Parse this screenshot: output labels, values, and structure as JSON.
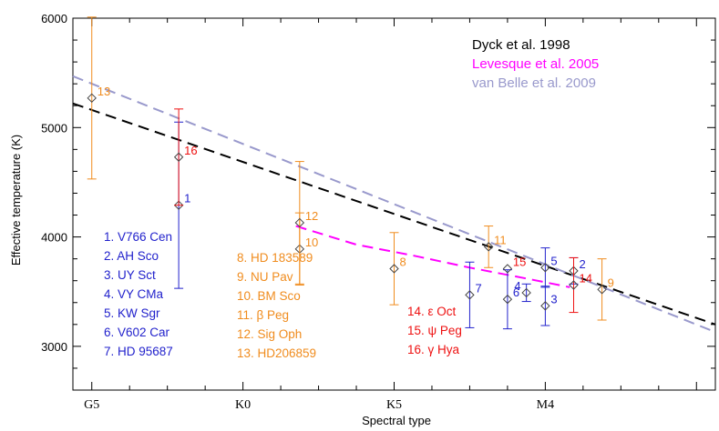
{
  "chart_data": {
    "type": "scatter",
    "xlabel": "Spectral type",
    "ylabel": "Effective temperature (K)",
    "xlim": [
      -1,
      33
    ],
    "ylim": [
      2600,
      6000
    ],
    "x_ticks": [
      {
        "pos": 0,
        "label": "G5"
      },
      {
        "pos": 8,
        "label": "K0"
      },
      {
        "pos": 16,
        "label": "K5"
      },
      {
        "pos": 24,
        "label": "M4"
      }
    ],
    "y_ticks": [
      3000,
      4000,
      5000,
      6000
    ],
    "series": [
      {
        "name": "Dyck et al. 1998",
        "color": "#000000",
        "points": [
          [
            -1,
            5220
          ],
          [
            33,
            3200
          ]
        ]
      },
      {
        "name": "Levesque et al. 2005",
        "color": "#ff00ff",
        "points": [
          [
            10.8,
            4100
          ],
          [
            14,
            3930
          ],
          [
            17,
            3830
          ],
          [
            20,
            3720
          ],
          [
            23,
            3620
          ],
          [
            25.3,
            3540
          ]
        ]
      },
      {
        "name": "van Belle et al. 2009",
        "color": "#9999cc",
        "points": [
          [
            -1,
            5470
          ],
          [
            33,
            3130
          ]
        ]
      }
    ],
    "stars": [
      {
        "id": "1",
        "name": "V766 Cen",
        "x": 4.6,
        "y": 4290,
        "err": 760,
        "color": "#2222cc",
        "label_pos": "right"
      },
      {
        "id": "2",
        "name": "AH Sco",
        "x": 25.5,
        "y": 3690,
        "err": 120,
        "color": "#2222cc",
        "label_pos": "right"
      },
      {
        "id": "3",
        "name": "UY Sct",
        "x": 24.0,
        "y": 3370,
        "err": 180,
        "color": "#2222cc",
        "label_pos": "right"
      },
      {
        "id": "4",
        "name": "VY CMa",
        "x": 23.0,
        "y": 3490,
        "err": 80,
        "color": "#2222cc",
        "label_pos": "left"
      },
      {
        "id": "5",
        "name": "KW Sgr",
        "x": 24.0,
        "y": 3720,
        "err": 180,
        "color": "#2222cc",
        "label_pos": "right"
      },
      {
        "id": "6",
        "name": "V602 Car",
        "x": 22.0,
        "y": 3430,
        "err": 270,
        "color": "#2222cc",
        "label_pos": "right"
      },
      {
        "id": "7",
        "name": "HD 95687",
        "x": 20.0,
        "y": 3470,
        "err": 300,
        "color": "#2222cc",
        "label_pos": "right"
      },
      {
        "id": "8",
        "name": "HD 183589",
        "x": 16.0,
        "y": 3710,
        "err": 330,
        "color": "#f08c1e",
        "label_pos": "right"
      },
      {
        "id": "9",
        "name": "NU Pav",
        "x": 27.0,
        "y": 3520,
        "err": 280,
        "color": "#f08c1e",
        "label_pos": "right"
      },
      {
        "id": "10",
        "name": "BM Sco",
        "x": 11.0,
        "y": 3890,
        "err": 330,
        "color": "#f08c1e",
        "label_pos": "right"
      },
      {
        "id": "11",
        "name": "β Peg",
        "x": 21.0,
        "y": 3910,
        "err": 190,
        "color": "#f08c1e",
        "label_pos": "right"
      },
      {
        "id": "12",
        "name": "Sig Oph",
        "x": 11.0,
        "y": 4130,
        "err": 560,
        "color": "#f08c1e",
        "label_pos": "right"
      },
      {
        "id": "13",
        "name": "HD206859",
        "x": 0.0,
        "y": 5270,
        "err": 740,
        "color": "#f08c1e",
        "label_pos": "right"
      },
      {
        "id": "14",
        "name": "ε Oct",
        "x": 25.5,
        "y": 3560,
        "err": 250,
        "color": "#ee1111",
        "label_pos": "right"
      },
      {
        "id": "15",
        "name": "ψ Peg",
        "x": 22.0,
        "y": 3710,
        "err": 0,
        "color": "#ee1111",
        "label_pos": "right"
      },
      {
        "id": "16",
        "name": "γ Hya",
        "x": 4.6,
        "y": 4730,
        "err": 440,
        "color": "#ee1111",
        "label_pos": "right"
      }
    ],
    "star_list": [
      {
        "text": "1. V766 Cen",
        "color": "#2222cc"
      },
      {
        "text": "2. AH Sco",
        "color": "#2222cc"
      },
      {
        "text": "3. UY Sct",
        "color": "#2222cc"
      },
      {
        "text": "4. VY CMa",
        "color": "#2222cc"
      },
      {
        "text": "5. KW Sgr",
        "color": "#2222cc"
      },
      {
        "text": "6. V602 Car",
        "color": "#2222cc"
      },
      {
        "text": "7. HD 95687",
        "color": "#2222cc"
      },
      {
        "text": "8. HD 183589",
        "color": "#f08c1e"
      },
      {
        "text": "9. NU Pav",
        "color": "#f08c1e"
      },
      {
        "text": "10. BM Sco",
        "color": "#f08c1e"
      },
      {
        "text": "11. β Peg",
        "color": "#f08c1e"
      },
      {
        "text": "12. Sig Oph",
        "color": "#f08c1e"
      },
      {
        "text": "13. HD206859",
        "color": "#f08c1e"
      },
      {
        "text": "14. ε Oct",
        "color": "#ee1111"
      },
      {
        "text": "15. ψ Peg",
        "color": "#ee1111"
      },
      {
        "text": "16. γ Hya",
        "color": "#ee1111"
      }
    ]
  }
}
